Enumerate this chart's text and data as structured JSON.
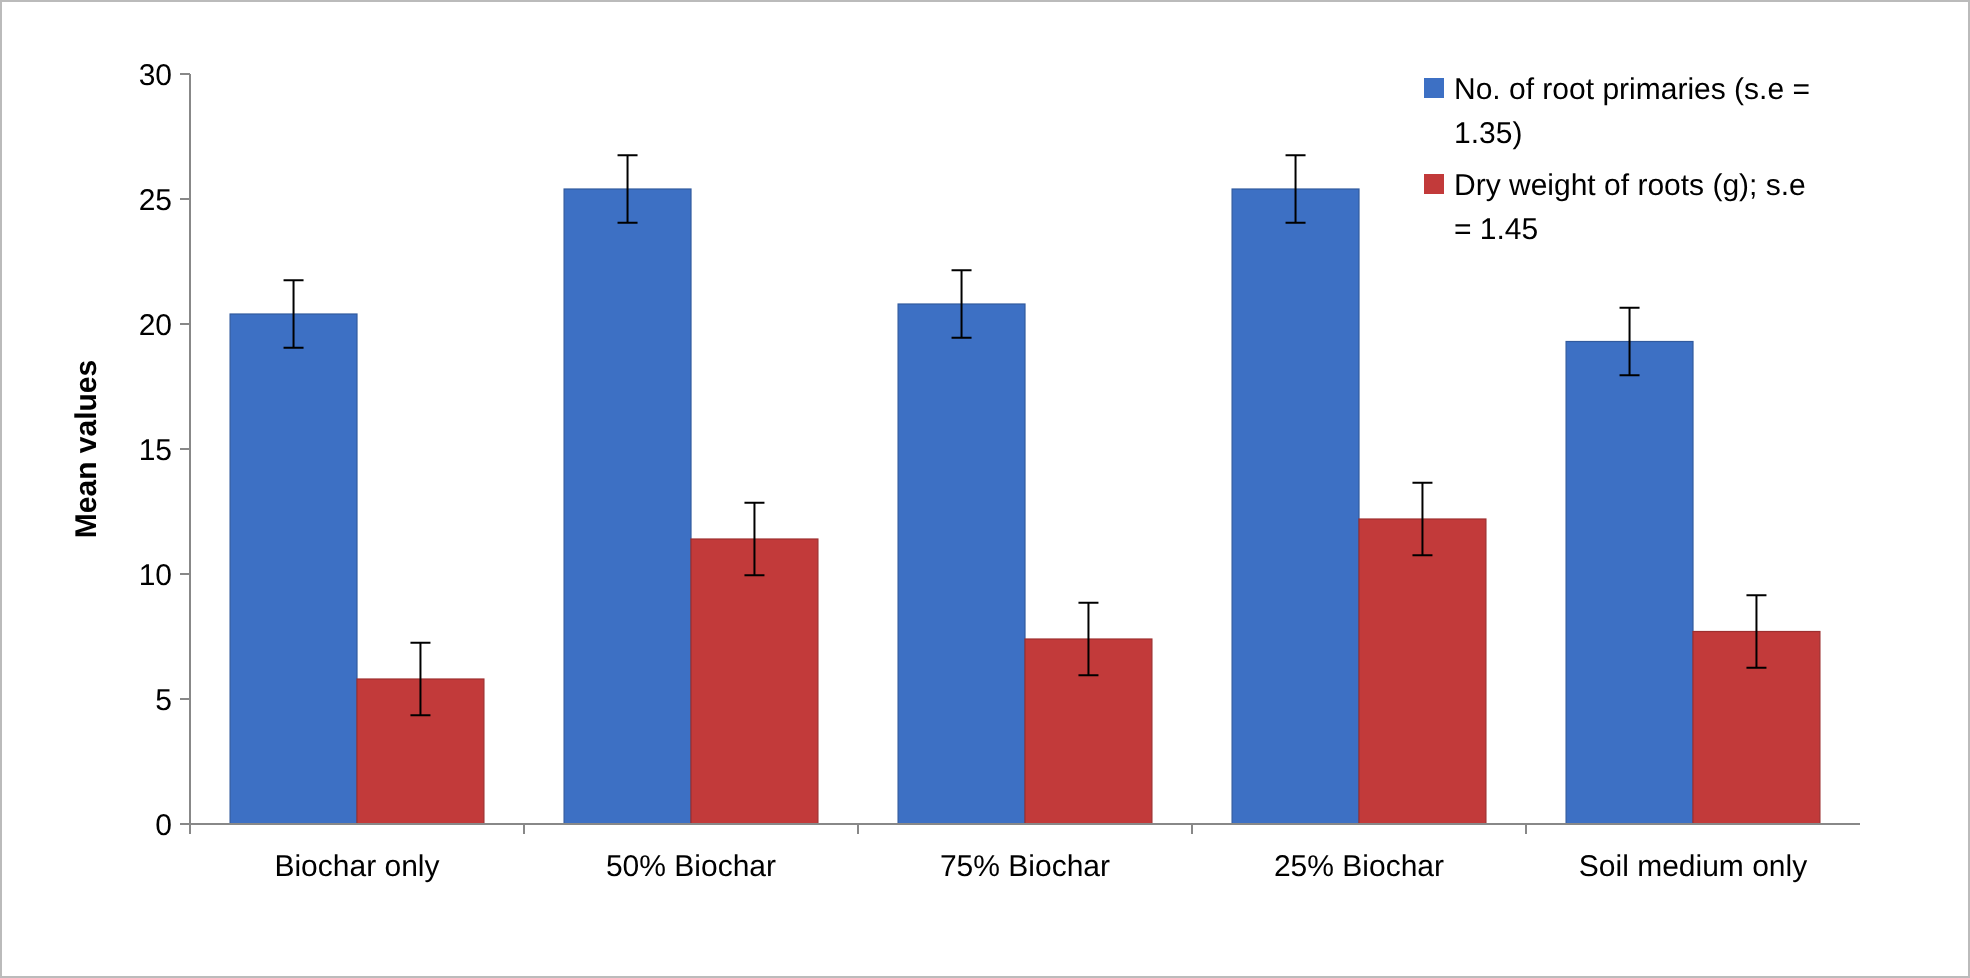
{
  "chart_data": {
    "type": "bar",
    "ylabel": "Mean values",
    "categories": [
      "Biochar only",
      "50% Biochar",
      "75% Biochar",
      "25% Biochar",
      "Soil medium only"
    ],
    "series": [
      {
        "name": "No. of root primaries (s.e = 1.35)",
        "color": "#3d70c4",
        "values": [
          20.4,
          25.4,
          20.8,
          25.4,
          19.3
        ],
        "errors": [
          1.35,
          1.35,
          1.35,
          1.35,
          1.35
        ]
      },
      {
        "name": "Dry weight of roots (g); s.e = 1.45",
        "color": "#c23a3a",
        "values": [
          5.8,
          11.4,
          7.4,
          12.2,
          7.7
        ],
        "errors": [
          1.45,
          1.45,
          1.45,
          1.45,
          1.45
        ]
      }
    ],
    "ylim": [
      0,
      30
    ],
    "yticks": [
      0,
      5,
      10,
      15,
      20,
      25,
      30
    ],
    "legend": "top right"
  }
}
